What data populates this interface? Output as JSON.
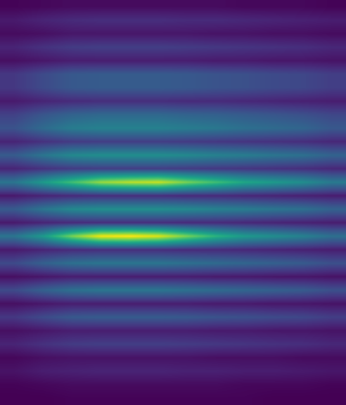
{
  "chart_data": {
    "type": "heatmap",
    "tick_labels": false,
    "cells": [
      [
        0.03,
        0.04,
        0.05,
        0.05,
        0.05,
        0.05,
        0.05,
        0.05,
        0.04,
        0.04,
        0.04,
        0.03
      ],
      [
        0.09,
        0.12,
        0.14,
        0.15,
        0.15,
        0.15,
        0.14,
        0.14,
        0.13,
        0.12,
        0.11,
        0.1
      ],
      [
        0.05,
        0.06,
        0.08,
        0.08,
        0.08,
        0.08,
        0.08,
        0.07,
        0.07,
        0.06,
        0.06,
        0.05
      ],
      [
        0.12,
        0.16,
        0.19,
        0.2,
        0.2,
        0.2,
        0.19,
        0.18,
        0.17,
        0.16,
        0.15,
        0.13
      ],
      [
        0.06,
        0.08,
        0.1,
        0.1,
        0.1,
        0.1,
        0.1,
        0.09,
        0.09,
        0.08,
        0.08,
        0.07
      ],
      [
        0.18,
        0.24,
        0.29,
        0.3,
        0.3,
        0.3,
        0.29,
        0.27,
        0.26,
        0.24,
        0.23,
        0.2
      ],
      [
        0.18,
        0.24,
        0.29,
        0.3,
        0.3,
        0.3,
        0.29,
        0.27,
        0.26,
        0.24,
        0.23,
        0.2
      ],
      [
        0.09,
        0.12,
        0.14,
        0.15,
        0.15,
        0.15,
        0.14,
        0.14,
        0.13,
        0.12,
        0.11,
        0.1
      ],
      [
        0.21,
        0.28,
        0.33,
        0.35,
        0.35,
        0.35,
        0.33,
        0.32,
        0.3,
        0.28,
        0.26,
        0.23
      ],
      [
        0.27,
        0.36,
        0.43,
        0.45,
        0.45,
        0.45,
        0.43,
        0.41,
        0.38,
        0.36,
        0.34,
        0.29
      ],
      [
        0.12,
        0.16,
        0.19,
        0.2,
        0.2,
        0.2,
        0.19,
        0.18,
        0.17,
        0.16,
        0.15,
        0.13
      ],
      [
        0.3,
        0.4,
        0.48,
        0.5,
        0.5,
        0.5,
        0.48,
        0.45,
        0.43,
        0.4,
        0.38,
        0.33
      ],
      [
        0.12,
        0.16,
        0.19,
        0.2,
        0.2,
        0.2,
        0.19,
        0.18,
        0.17,
        0.16,
        0.15,
        0.13
      ],
      [
        0.4,
        0.55,
        0.7,
        0.85,
        0.9,
        0.92,
        0.8,
        0.7,
        0.6,
        0.55,
        0.5,
        0.42
      ],
      [
        0.09,
        0.12,
        0.14,
        0.15,
        0.15,
        0.15,
        0.14,
        0.14,
        0.13,
        0.12,
        0.11,
        0.1
      ],
      [
        0.3,
        0.4,
        0.48,
        0.5,
        0.5,
        0.5,
        0.48,
        0.45,
        0.43,
        0.4,
        0.38,
        0.33
      ],
      [
        0.09,
        0.12,
        0.14,
        0.15,
        0.15,
        0.15,
        0.14,
        0.14,
        0.13,
        0.12,
        0.11,
        0.1
      ],
      [
        0.4,
        0.55,
        0.8,
        0.98,
        1.0,
        0.95,
        0.8,
        0.65,
        0.55,
        0.5,
        0.45,
        0.38
      ],
      [
        0.09,
        0.12,
        0.14,
        0.15,
        0.15,
        0.15,
        0.14,
        0.14,
        0.13,
        0.12,
        0.11,
        0.1
      ],
      [
        0.24,
        0.32,
        0.38,
        0.4,
        0.4,
        0.4,
        0.38,
        0.36,
        0.34,
        0.32,
        0.3,
        0.26
      ],
      [
        0.06,
        0.08,
        0.1,
        0.1,
        0.1,
        0.1,
        0.1,
        0.09,
        0.09,
        0.08,
        0.08,
        0.07
      ],
      [
        0.24,
        0.32,
        0.38,
        0.4,
        0.4,
        0.4,
        0.38,
        0.36,
        0.34,
        0.32,
        0.3,
        0.26
      ],
      [
        0.06,
        0.08,
        0.1,
        0.1,
        0.1,
        0.1,
        0.1,
        0.09,
        0.09,
        0.08,
        0.08,
        0.07
      ],
      [
        0.18,
        0.24,
        0.29,
        0.3,
        0.3,
        0.3,
        0.29,
        0.27,
        0.26,
        0.24,
        0.23,
        0.2
      ],
      [
        0.06,
        0.08,
        0.1,
        0.1,
        0.1,
        0.1,
        0.1,
        0.09,
        0.09,
        0.08,
        0.08,
        0.07
      ],
      [
        0.12,
        0.16,
        0.19,
        0.2,
        0.2,
        0.2,
        0.19,
        0.18,
        0.17,
        0.16,
        0.15,
        0.13
      ],
      [
        0.04,
        0.06,
        0.07,
        0.07,
        0.07,
        0.07,
        0.07,
        0.06,
        0.06,
        0.06,
        0.05,
        0.05
      ],
      [
        0.07,
        0.1,
        0.11,
        0.12,
        0.12,
        0.12,
        0.11,
        0.11,
        0.1,
        0.1,
        0.09,
        0.08
      ],
      [
        0.03,
        0.04,
        0.05,
        0.05,
        0.05,
        0.05,
        0.05,
        0.05,
        0.04,
        0.04,
        0.04,
        0.03
      ],
      [
        0.02,
        0.02,
        0.03,
        0.03,
        0.03,
        0.03,
        0.03,
        0.03,
        0.03,
        0.02,
        0.02,
        0.02
      ]
    ]
  }
}
